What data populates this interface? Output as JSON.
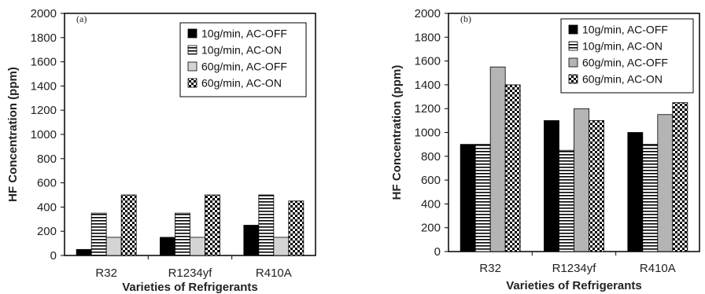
{
  "colors": {
    "series_1": "#000000",
    "series_2": "#ffffff",
    "series_3": "#bfbfbf",
    "series_4": "#000000",
    "axis": "#000000"
  },
  "chart_data": [
    {
      "type": "bar",
      "panel_label": "(a)",
      "categories": [
        "R32",
        "R1234yf",
        "R410A"
      ],
      "xlabel": "Varieties of Refrigerants",
      "ylabel": "HF Concentration (ppm)",
      "ylim": [
        0,
        2000
      ],
      "yticks": [
        0,
        200,
        400,
        600,
        800,
        1000,
        1200,
        1400,
        1600,
        1800,
        2000
      ],
      "legend_position": "top-right",
      "grid": false,
      "series": [
        {
          "name": "10g/min, AC-OFF",
          "pattern": "solid-black",
          "values": [
            50,
            150,
            250
          ]
        },
        {
          "name": "10g/min, AC-ON",
          "pattern": "horizontal-stripes",
          "values": [
            350,
            350,
            500
          ]
        },
        {
          "name": "60g/min, AC-OFF",
          "pattern": "light-gray",
          "values": [
            150,
            150,
            150
          ]
        },
        {
          "name": "60g/min, AC-ON",
          "pattern": "checkerboard",
          "values": [
            500,
            500,
            450
          ]
        }
      ]
    },
    {
      "type": "bar",
      "panel_label": "(b)",
      "categories": [
        "R32",
        "R1234yf",
        "R410A"
      ],
      "xlabel": "Varieties of Refrigerants",
      "ylabel": "HF Concentration (ppm)",
      "ylim": [
        0,
        2000
      ],
      "yticks": [
        0,
        200,
        400,
        600,
        800,
        1000,
        1200,
        1400,
        1600,
        1800,
        2000
      ],
      "legend_position": "top-right",
      "grid": false,
      "series": [
        {
          "name": "10g/min, AC-OFF",
          "pattern": "solid-black",
          "values": [
            900,
            1100,
            1000
          ]
        },
        {
          "name": "10g/min, AC-ON",
          "pattern": "horizontal-stripes",
          "values": [
            900,
            850,
            900
          ]
        },
        {
          "name": "60g/min, AC-OFF",
          "pattern": "medium-gray",
          "values": [
            1550,
            1200,
            1150
          ]
        },
        {
          "name": "60g/min, AC-ON",
          "pattern": "checkerboard",
          "values": [
            1400,
            1100,
            1250
          ]
        }
      ]
    }
  ]
}
